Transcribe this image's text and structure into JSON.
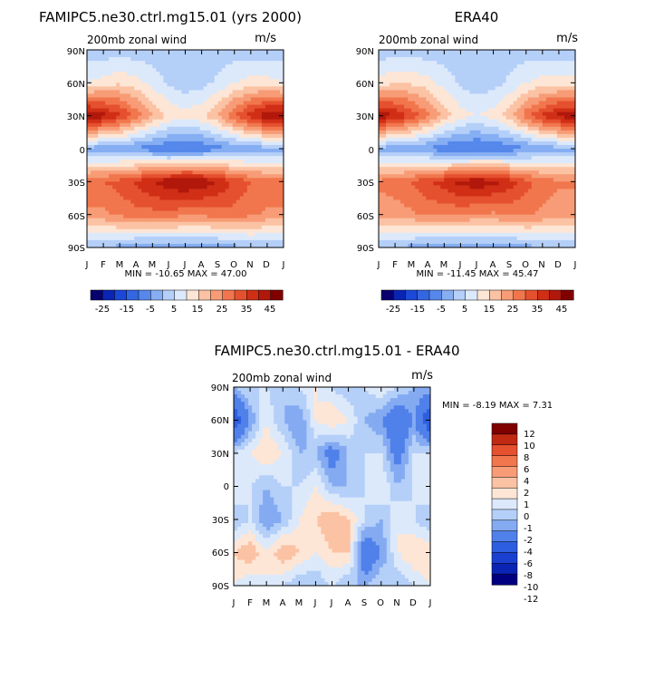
{
  "panels": {
    "model": {
      "title": "FAMIPC5.ne30.ctrl.mg15.01 (yrs 2000)",
      "subtitle": "200mb zonal wind",
      "units": "m/s",
      "stats": "MIN = -10.65  MAX =   47.00"
    },
    "obs": {
      "title": "ERA40",
      "subtitle": "200mb zonal wind",
      "units": "m/s",
      "stats": "MIN = -11.45  MAX =   45.47"
    },
    "diff": {
      "title": "FAMIPC5.ne30.ctrl.mg15.01 - ERA40",
      "subtitle": "200mb zonal wind",
      "units": "m/s",
      "stats": "MIN =   -8.19  MAX =    7.31"
    }
  },
  "chart_data": [
    {
      "type": "heatmap",
      "title": "FAMIPC5.ne30.ctrl.mg15.01 (yrs 2000)",
      "subtitle": "200mb zonal wind",
      "units": "m/s",
      "x": [
        "J",
        "F",
        "M",
        "A",
        "M",
        "J",
        "J",
        "A",
        "S",
        "O",
        "N",
        "D",
        "J"
      ],
      "y": [
        "90N",
        "60N",
        "30N",
        "0",
        "30S",
        "60S",
        "90S"
      ],
      "value_grid_rows_90N_to_90S_cols_Jan_to_Jan": [
        [
          2,
          2,
          2,
          2,
          2,
          2,
          2,
          2,
          2,
          2,
          2,
          2,
          2
        ],
        [
          10,
          12,
          14,
          12,
          8,
          4,
          2,
          3,
          6,
          10,
          12,
          12,
          10
        ],
        [
          45,
          42,
          36,
          28,
          20,
          14,
          12,
          14,
          20,
          30,
          38,
          44,
          45
        ],
        [
          -2,
          -3,
          -4,
          -6,
          -8,
          -10,
          -10,
          -9,
          -7,
          -5,
          -3,
          -2,
          -2
        ],
        [
          28,
          30,
          32,
          36,
          40,
          44,
          46,
          44,
          40,
          34,
          30,
          28,
          28
        ],
        [
          24,
          24,
          26,
          28,
          28,
          28,
          26,
          26,
          28,
          28,
          26,
          24,
          24
        ],
        [
          0,
          0,
          -2,
          -4,
          -4,
          -4,
          -4,
          -4,
          -4,
          -2,
          0,
          0,
          0
        ]
      ],
      "min": -10.65,
      "max": 47.0,
      "colorbar": {
        "levels": [
          -30,
          -25,
          -20,
          -15,
          -10,
          -5,
          0,
          5,
          10,
          15,
          20,
          25,
          30,
          35,
          40,
          45
        ],
        "tick_labels": [
          "-25",
          "-15",
          "-5",
          "5",
          "15",
          "25",
          "35",
          "45"
        ]
      }
    },
    {
      "type": "heatmap",
      "title": "ERA40",
      "subtitle": "200mb zonal wind",
      "units": "m/s",
      "x": [
        "J",
        "F",
        "M",
        "A",
        "M",
        "J",
        "J",
        "A",
        "S",
        "O",
        "N",
        "D",
        "J"
      ],
      "y": [
        "90N",
        "60N",
        "30N",
        "0",
        "30S",
        "60S",
        "90S"
      ],
      "value_grid_rows_90N_to_90S_cols_Jan_to_Jan": [
        [
          2,
          2,
          2,
          2,
          2,
          2,
          2,
          2,
          2,
          2,
          2,
          2,
          2
        ],
        [
          12,
          14,
          14,
          12,
          8,
          4,
          2,
          3,
          6,
          10,
          12,
          12,
          12
        ],
        [
          44,
          40,
          34,
          26,
          18,
          12,
          10,
          12,
          18,
          28,
          36,
          42,
          44
        ],
        [
          -2,
          -3,
          -4,
          -6,
          -9,
          -11,
          -11,
          -10,
          -8,
          -6,
          -3,
          -2,
          -2
        ],
        [
          26,
          28,
          30,
          34,
          38,
          42,
          44,
          42,
          38,
          32,
          28,
          26,
          26
        ],
        [
          22,
          22,
          24,
          26,
          26,
          26,
          24,
          24,
          26,
          26,
          24,
          22,
          22
        ],
        [
          0,
          0,
          -2,
          -4,
          -4,
          -4,
          -4,
          -4,
          -4,
          -2,
          0,
          0,
          0
        ]
      ],
      "min": -11.45,
      "max": 45.47,
      "colorbar": {
        "levels": [
          -30,
          -25,
          -20,
          -15,
          -10,
          -5,
          0,
          5,
          10,
          15,
          20,
          25,
          30,
          35,
          40,
          45
        ],
        "tick_labels": [
          "-25",
          "-15",
          "-5",
          "5",
          "15",
          "25",
          "35",
          "45"
        ]
      }
    },
    {
      "type": "heatmap",
      "title": "FAMIPC5.ne30.ctrl.mg15.01 - ERA40",
      "subtitle": "200mb zonal wind",
      "units": "m/s",
      "x": [
        "J",
        "F",
        "M",
        "A",
        "M",
        "J",
        "J",
        "A",
        "S",
        "O",
        "N",
        "D",
        "J"
      ],
      "y": [
        "90N",
        "60N",
        "30N",
        "0",
        "30S",
        "60S",
        "90S"
      ],
      "value_grid_rows_90N_to_90S_cols_Jan_to_Jan": [
        [
          -1,
          0,
          0,
          -1,
          0,
          1,
          0,
          -1,
          0,
          1,
          0,
          -1,
          -1
        ],
        [
          -6,
          -2,
          1,
          -1,
          -2,
          1,
          2,
          1,
          -1,
          -2,
          -4,
          -2,
          -6
        ],
        [
          0,
          1,
          2,
          1,
          -1,
          -1,
          -3,
          -1,
          0,
          0,
          -3,
          0,
          0
        ],
        [
          1,
          0,
          -1,
          0,
          0,
          1,
          -1,
          -1,
          0,
          1,
          -1,
          0,
          1
        ],
        [
          -1,
          0,
          -2,
          -1,
          1,
          2,
          3,
          2,
          0,
          -1,
          1,
          0,
          -1
        ],
        [
          2,
          3,
          1,
          3,
          2,
          1,
          2,
          2,
          -4,
          -2,
          1,
          2,
          2
        ],
        [
          1,
          0,
          1,
          0,
          -1,
          -1,
          0,
          -1,
          -1,
          0,
          -1,
          0,
          1
        ]
      ],
      "min": -8.19,
      "max": 7.31,
      "colorbar": {
        "levels": [
          -12,
          -10,
          -8,
          -6,
          -4,
          -2,
          -1,
          0,
          1,
          2,
          4,
          6,
          8,
          10,
          12
        ],
        "tick_labels": [
          "12",
          "10",
          "8",
          "6",
          "4",
          "2",
          "1",
          "0",
          "-1",
          "-2",
          "-4",
          "-6",
          "-8",
          "-10",
          "-12"
        ]
      }
    }
  ],
  "colors": {
    "full_scale": [
      "#08006e",
      "#0a24b4",
      "#1c48d8",
      "#3366e0",
      "#5588ea",
      "#86aef2",
      "#b4cff8",
      "#dce9fb",
      "#fde6d6",
      "#fbc2a4",
      "#f79c76",
      "#f1764d",
      "#e5502e",
      "#d02f16",
      "#b1180b",
      "#800000"
    ],
    "diff_scale": [
      "#000080",
      "#0a24b4",
      "#1a40d0",
      "#2e5ee0",
      "#5080ea",
      "#84aaf2",
      "#b4cff8",
      "#dce9fb",
      "#fde6d6",
      "#fbc2a4",
      "#f79c76",
      "#f1764d",
      "#e5502e",
      "#c02a12",
      "#800000"
    ]
  }
}
